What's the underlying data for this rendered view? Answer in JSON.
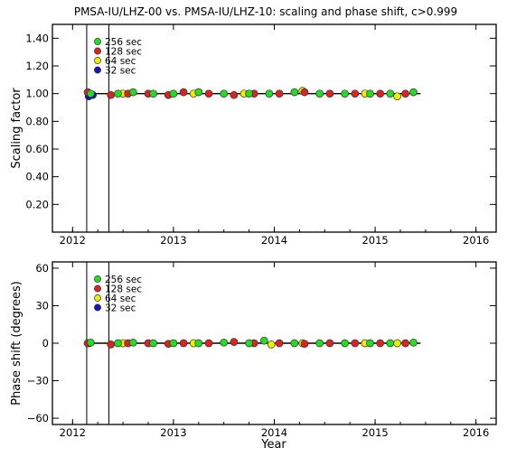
{
  "title": "PMSA-IU/LHZ-00 vs. PMSA-IU/LHZ-10: scaling and phase shift, c>0.999",
  "xlabel": "Year",
  "colors": {
    "256 sec": "#22dd22",
    "128 sec": "#dd2222",
    "64 sec": "#eeee00",
    "32 sec": "#1111cc"
  },
  "chart_data": [
    {
      "type": "scatter",
      "panel": "top",
      "ylabel": "Scaling factor",
      "xlim": [
        2011.8,
        2016.2
      ],
      "ylim": [
        0.0,
        1.5
      ],
      "x_ticks": [
        "2012",
        "2013",
        "2014",
        "2015",
        "2016"
      ],
      "y_ticks": [
        "0.20",
        "0.40",
        "0.60",
        "0.80",
        "1.00",
        "1.20",
        "1.40"
      ],
      "vertical_lines": [
        2012.14,
        2012.36
      ],
      "reference_line": 1.0,
      "legend": [
        "256 sec",
        "128 sec",
        "64 sec",
        "32 sec"
      ],
      "series": [
        {
          "name": "256 sec",
          "x": [
            2012.18,
            2012.45,
            2012.6,
            2012.8,
            2013.0,
            2013.25,
            2013.5,
            2013.75,
            2013.95,
            2014.2,
            2014.45,
            2014.7,
            2014.95,
            2015.15,
            2015.38
          ],
          "y": [
            1.0,
            1.0,
            1.01,
            1.0,
            1.0,
            1.01,
            1.0,
            1.0,
            1.0,
            1.01,
            1.0,
            1.0,
            1.0,
            1.0,
            1.01
          ]
        },
        {
          "name": "128 sec",
          "x": [
            2012.15,
            2012.38,
            2012.55,
            2012.75,
            2012.95,
            2013.1,
            2013.35,
            2013.6,
            2013.8,
            2014.05,
            2014.3,
            2014.55,
            2014.8,
            2015.05,
            2015.3
          ],
          "y": [
            1.01,
            0.99,
            1.0,
            1.0,
            0.99,
            1.01,
            1.0,
            0.99,
            1.0,
            1.0,
            1.01,
            1.0,
            1.0,
            1.0,
            1.0
          ]
        },
        {
          "name": "64 sec",
          "x": [
            2012.5,
            2013.2,
            2013.7,
            2014.28,
            2014.9,
            2015.22
          ],
          "y": [
            1.0,
            1.0,
            1.0,
            1.02,
            1.0,
            0.98
          ]
        },
        {
          "name": "32 sec",
          "x": [
            2012.16,
            2012.2
          ],
          "y": [
            0.98,
            0.99
          ]
        }
      ]
    },
    {
      "type": "scatter",
      "panel": "bottom",
      "ylabel": "Phase shift (degrees)",
      "xlim": [
        2011.8,
        2016.2
      ],
      "ylim": [
        -65,
        65
      ],
      "x_ticks": [
        "2012",
        "2013",
        "2014",
        "2015",
        "2016"
      ],
      "y_ticks": [
        "60",
        "30",
        "0",
        "−30",
        "−60"
      ],
      "vertical_lines": [
        2012.14,
        2012.36
      ],
      "reference_line": 0,
      "legend": [
        "256 sec",
        "128 sec",
        "64 sec",
        "32 sec"
      ],
      "series": [
        {
          "name": "256 sec",
          "x": [
            2012.18,
            2012.45,
            2012.6,
            2012.8,
            2013.0,
            2013.25,
            2013.5,
            2013.75,
            2013.9,
            2014.2,
            2014.45,
            2014.7,
            2014.95,
            2015.15,
            2015.38
          ],
          "y": [
            0.5,
            0,
            0.5,
            0,
            0,
            0,
            0.5,
            0,
            2,
            0,
            0,
            0,
            0,
            0,
            0.5
          ]
        },
        {
          "name": "128 sec",
          "x": [
            2012.15,
            2012.38,
            2012.55,
            2012.75,
            2012.95,
            2013.1,
            2013.35,
            2013.6,
            2013.8,
            2014.05,
            2014.3,
            2014.55,
            2014.8,
            2015.05,
            2015.3
          ],
          "y": [
            0,
            -1,
            0,
            0,
            -0.5,
            0,
            0,
            1,
            0,
            0,
            -0.5,
            0,
            0,
            0,
            0
          ]
        },
        {
          "name": "64 sec",
          "x": [
            2012.5,
            2013.2,
            2013.97,
            2014.28,
            2014.9,
            2015.22
          ],
          "y": [
            0,
            0,
            -1,
            0,
            0,
            0
          ]
        },
        {
          "name": "32 sec",
          "x": [
            2012.16
          ],
          "y": [
            0
          ]
        }
      ]
    }
  ]
}
